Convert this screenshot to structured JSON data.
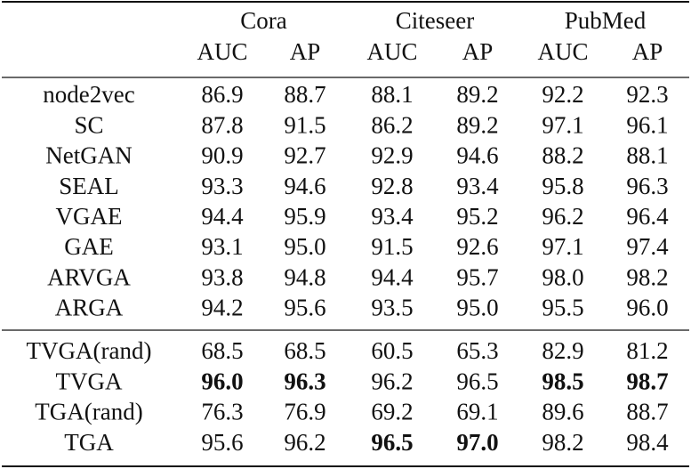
{
  "table": {
    "groups": [
      {
        "name": "Cora",
        "columns": [
          "AUC",
          "AP"
        ]
      },
      {
        "name": "Citeseer",
        "columns": [
          "AUC",
          "AP"
        ]
      },
      {
        "name": "PubMed",
        "columns": [
          "AUC",
          "AP"
        ]
      }
    ],
    "sections": [
      [
        {
          "label": "node2vec",
          "cells": [
            "86.9",
            "88.7",
            "88.1",
            "89.2",
            "92.2",
            "92.3"
          ],
          "bold": [
            false,
            false,
            false,
            false,
            false,
            false
          ]
        },
        {
          "label": "SC",
          "cells": [
            "87.8",
            "91.5",
            "86.2",
            "89.2",
            "97.1",
            "96.1"
          ],
          "bold": [
            false,
            false,
            false,
            false,
            false,
            false
          ]
        },
        {
          "label": "NetGAN",
          "cells": [
            "90.9",
            "92.7",
            "92.9",
            "94.6",
            "88.2",
            "88.1"
          ],
          "bold": [
            false,
            false,
            false,
            false,
            false,
            false
          ]
        },
        {
          "label": "SEAL",
          "cells": [
            "93.3",
            "94.6",
            "92.8",
            "93.4",
            "95.8",
            "96.3"
          ],
          "bold": [
            false,
            false,
            false,
            false,
            false,
            false
          ]
        },
        {
          "label": "VGAE",
          "cells": [
            "94.4",
            "95.9",
            "93.4",
            "95.2",
            "96.2",
            "96.4"
          ],
          "bold": [
            false,
            false,
            false,
            false,
            false,
            false
          ]
        },
        {
          "label": "GAE",
          "cells": [
            "93.1",
            "95.0",
            "91.5",
            "92.6",
            "97.1",
            "97.4"
          ],
          "bold": [
            false,
            false,
            false,
            false,
            false,
            false
          ]
        },
        {
          "label": "ARVGA",
          "cells": [
            "93.8",
            "94.8",
            "94.4",
            "95.7",
            "98.0",
            "98.2"
          ],
          "bold": [
            false,
            false,
            false,
            false,
            false,
            false
          ]
        },
        {
          "label": "ARGA",
          "cells": [
            "94.2",
            "95.6",
            "93.5",
            "95.0",
            "95.5",
            "96.0"
          ],
          "bold": [
            false,
            false,
            false,
            false,
            false,
            false
          ]
        }
      ],
      [
        {
          "label": "TVGA(rand)",
          "cells": [
            "68.5",
            "68.5",
            "60.5",
            "65.3",
            "82.9",
            "81.2"
          ],
          "bold": [
            false,
            false,
            false,
            false,
            false,
            false
          ]
        },
        {
          "label": "TVGA",
          "cells": [
            "96.0",
            "96.3",
            "96.2",
            "96.5",
            "98.5",
            "98.7"
          ],
          "bold": [
            true,
            true,
            false,
            false,
            true,
            true
          ]
        },
        {
          "label": "TGA(rand)",
          "cells": [
            "76.3",
            "76.9",
            "69.2",
            "69.1",
            "89.6",
            "88.7"
          ],
          "bold": [
            false,
            false,
            false,
            false,
            false,
            false
          ]
        },
        {
          "label": "TGA",
          "cells": [
            "95.6",
            "96.2",
            "96.5",
            "97.0",
            "98.2",
            "98.4"
          ],
          "bold": [
            false,
            false,
            true,
            true,
            false,
            false
          ]
        }
      ]
    ]
  }
}
